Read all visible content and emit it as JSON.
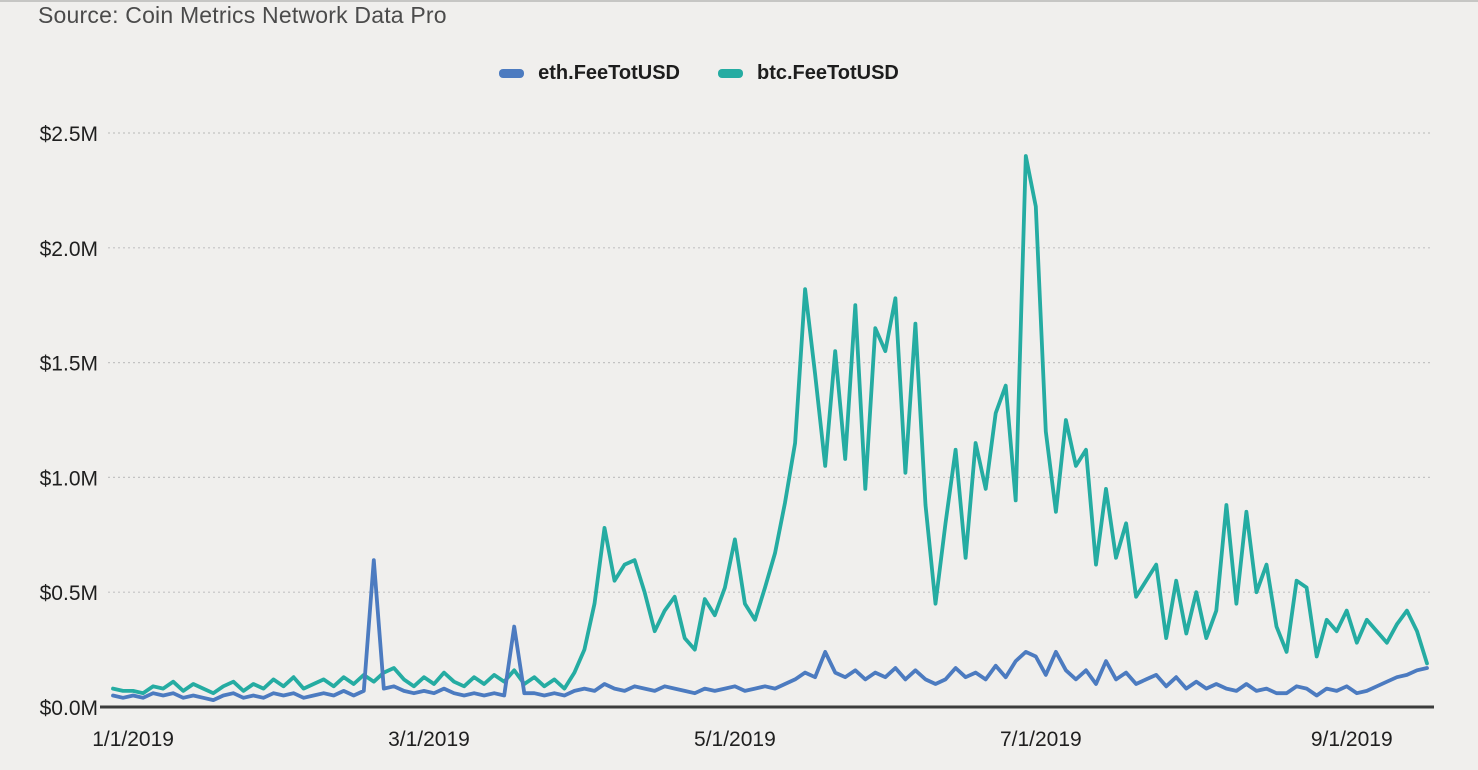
{
  "page": {
    "source_label": "Source: Coin Metrics Network Data Pro"
  },
  "legend": {
    "position": "top-center",
    "items": [
      {
        "id": "eth",
        "label": "eth.FeeTotUSD",
        "color": "#4c7bc0"
      },
      {
        "id": "btc",
        "label": "btc.FeeTotUSD",
        "color": "#25aca2"
      }
    ]
  },
  "colors": {
    "background": "#f0efed",
    "gridline": "#c3c3c3",
    "axis_line": "#3c3c3c",
    "tick_text": "#1f1f1f",
    "title_text": "#4b4b4b",
    "eth_line": "#4c7bc0",
    "btc_line": "#25aca2"
  },
  "chart_data": {
    "type": "line",
    "title": "",
    "grid": true,
    "legend_position": "top-center",
    "x_axis": {
      "epoch": "2019-01-01",
      "domain_days": [
        -5,
        259
      ],
      "ticks": [
        {
          "day": 0,
          "label": "1/1/2019"
        },
        {
          "day": 59,
          "label": "3/1/2019"
        },
        {
          "day": 120,
          "label": "5/1/2019"
        },
        {
          "day": 181,
          "label": "7/1/2019"
        },
        {
          "day": 243,
          "label": "9/1/2019"
        }
      ]
    },
    "y_axis": {
      "unit": "USD millions per day",
      "range_musd": [
        0,
        2.5
      ],
      "tick_step_musd": 0.5,
      "ticks": [
        {
          "value_musd": 0.0,
          "label": "$0.0M"
        },
        {
          "value_musd": 0.5,
          "label": "$0.5M"
        },
        {
          "value_musd": 1.0,
          "label": "$1.0M"
        },
        {
          "value_musd": 1.5,
          "label": "$1.5M"
        },
        {
          "value_musd": 2.0,
          "label": "$2.0M"
        },
        {
          "value_musd": 2.5,
          "label": "$2.5M"
        }
      ]
    },
    "sampling": {
      "start_day": -4,
      "step_days": 2
    },
    "series": [
      {
        "name": "eth.FeeTotUSD",
        "color": "#4c7bc0",
        "values_musd": [
          0.05,
          0.04,
          0.05,
          0.04,
          0.06,
          0.05,
          0.06,
          0.04,
          0.05,
          0.04,
          0.03,
          0.05,
          0.06,
          0.04,
          0.05,
          0.04,
          0.06,
          0.05,
          0.06,
          0.04,
          0.05,
          0.06,
          0.05,
          0.07,
          0.05,
          0.07,
          0.64,
          0.08,
          0.09,
          0.07,
          0.06,
          0.07,
          0.06,
          0.08,
          0.06,
          0.05,
          0.06,
          0.05,
          0.06,
          0.05,
          0.35,
          0.06,
          0.06,
          0.05,
          0.06,
          0.05,
          0.07,
          0.08,
          0.07,
          0.1,
          0.08,
          0.07,
          0.09,
          0.08,
          0.07,
          0.09,
          0.08,
          0.07,
          0.06,
          0.08,
          0.07,
          0.08,
          0.09,
          0.07,
          0.08,
          0.09,
          0.08,
          0.1,
          0.12,
          0.15,
          0.13,
          0.24,
          0.15,
          0.13,
          0.16,
          0.12,
          0.15,
          0.13,
          0.17,
          0.12,
          0.16,
          0.12,
          0.1,
          0.12,
          0.17,
          0.13,
          0.15,
          0.12,
          0.18,
          0.13,
          0.2,
          0.24,
          0.22,
          0.14,
          0.24,
          0.16,
          0.12,
          0.16,
          0.1,
          0.2,
          0.12,
          0.15,
          0.1,
          0.12,
          0.14,
          0.09,
          0.13,
          0.08,
          0.11,
          0.08,
          0.1,
          0.08,
          0.07,
          0.1,
          0.07,
          0.08,
          0.06,
          0.06,
          0.09,
          0.08,
          0.05,
          0.08,
          0.07,
          0.09,
          0.06,
          0.07,
          0.09,
          0.11,
          0.13,
          0.14,
          0.16,
          0.17
        ]
      },
      {
        "name": "btc.FeeTotUSD",
        "color": "#25aca2",
        "values_musd": [
          0.08,
          0.07,
          0.07,
          0.06,
          0.09,
          0.08,
          0.11,
          0.07,
          0.1,
          0.08,
          0.06,
          0.09,
          0.11,
          0.07,
          0.1,
          0.08,
          0.12,
          0.09,
          0.13,
          0.08,
          0.1,
          0.12,
          0.09,
          0.13,
          0.1,
          0.14,
          0.11,
          0.15,
          0.17,
          0.12,
          0.09,
          0.13,
          0.1,
          0.15,
          0.11,
          0.09,
          0.13,
          0.1,
          0.14,
          0.11,
          0.16,
          0.1,
          0.13,
          0.09,
          0.12,
          0.08,
          0.15,
          0.25,
          0.45,
          0.78,
          0.55,
          0.62,
          0.64,
          0.5,
          0.33,
          0.42,
          0.48,
          0.3,
          0.25,
          0.47,
          0.4,
          0.52,
          0.73,
          0.45,
          0.38,
          0.52,
          0.67,
          0.89,
          1.15,
          1.82,
          1.45,
          1.05,
          1.55,
          1.08,
          1.75,
          0.95,
          1.65,
          1.55,
          1.78,
          1.02,
          1.67,
          0.88,
          0.45,
          0.8,
          1.12,
          0.65,
          1.15,
          0.95,
          1.28,
          1.4,
          0.9,
          2.4,
          2.18,
          1.2,
          0.85,
          1.25,
          1.05,
          1.12,
          0.62,
          0.95,
          0.65,
          0.8,
          0.48,
          0.55,
          0.62,
          0.3,
          0.55,
          0.32,
          0.5,
          0.3,
          0.42,
          0.88,
          0.45,
          0.85,
          0.5,
          0.62,
          0.35,
          0.24,
          0.55,
          0.52,
          0.22,
          0.38,
          0.33,
          0.42,
          0.28,
          0.38,
          0.33,
          0.28,
          0.36,
          0.42,
          0.33,
          0.19
        ]
      }
    ]
  }
}
